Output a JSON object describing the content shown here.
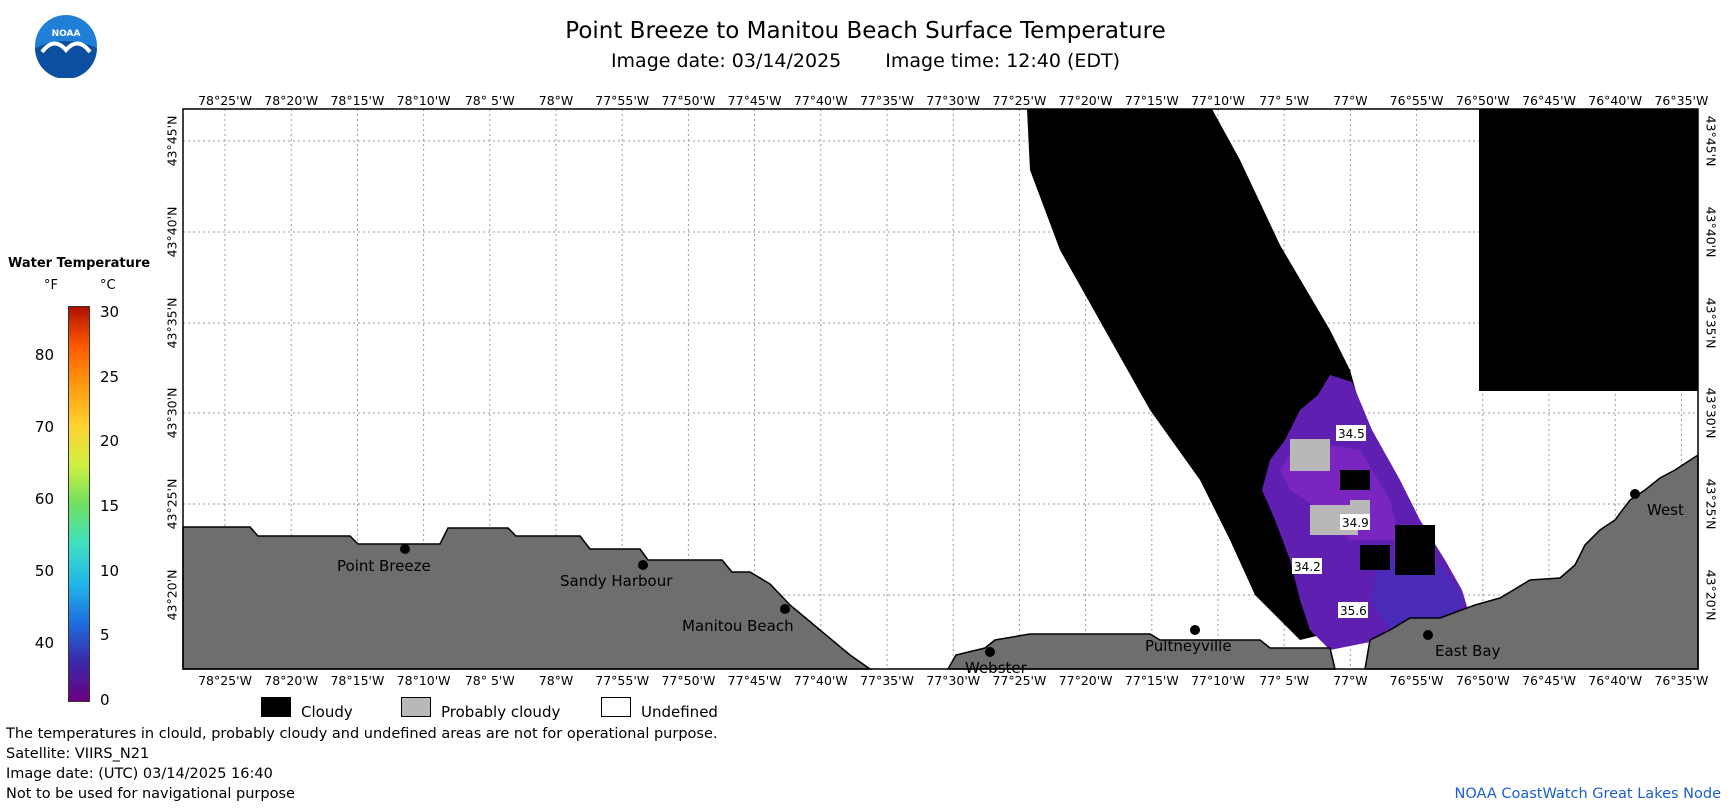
{
  "header": {
    "title": "Point Breeze to Manitou Beach Surface Temperature",
    "image_date": "Image date: 03/14/2025",
    "image_time": "Image time: 12:40 (EDT)"
  },
  "logo": {
    "text": "NOAA",
    "icon": "noaa-logo"
  },
  "axes": {
    "longitude_labels": [
      "78°25'W",
      "78°20'W",
      "78°15'W",
      "78°10'W",
      "78° 5'W",
      "78°W",
      "77°55'W",
      "77°50'W",
      "77°45'W",
      "77°40'W",
      "77°35'W",
      "77°30'W",
      "77°25'W",
      "77°20'W",
      "77°15'W",
      "77°10'W",
      "77° 5'W",
      "77°W",
      "76°55'W",
      "76°50'W",
      "76°45'W",
      "76°40'W",
      "76°35'W"
    ],
    "latitude_labels": [
      "43°45'N",
      "43°40'N",
      "43°35'N",
      "43°30'N",
      "43°25'N",
      "43°20'N"
    ]
  },
  "colorbar": {
    "title": "Water Temperature",
    "unit_f": "°F",
    "unit_c": "°C",
    "fahrenheit_ticks": [
      "80",
      "70",
      "60",
      "50",
      "40"
    ],
    "celsius_ticks": [
      "30",
      "25",
      "20",
      "15",
      "10",
      "5",
      "0"
    ],
    "range_c": [
      0,
      30
    ],
    "colors": [
      "#6a0080",
      "#3a2aa8",
      "#1f6fe0",
      "#20b8e8",
      "#40e0c0",
      "#70e060",
      "#d0f040",
      "#ffd030",
      "#ff9a10",
      "#ff5a00",
      "#b01000"
    ]
  },
  "places": [
    {
      "name": "Point Breeze"
    },
    {
      "name": "Sandy Harbour"
    },
    {
      "name": "Manitou Beach"
    },
    {
      "name": "Webster"
    },
    {
      "name": "Pultneyville"
    },
    {
      "name": "East Bay"
    },
    {
      "name": "West"
    }
  ],
  "temperature_labels": [
    "34.5",
    "34.9",
    "34.2",
    "35.6"
  ],
  "map_colors": {
    "land": "#6e6e6e",
    "cloud": "#000000",
    "probably_cloudy": "#b8b8b8",
    "water_cold": "#5f1fb0",
    "water_cold2": "#7a25c0",
    "water_cold3": "#4a2ab8"
  },
  "legend": {
    "cloudy": "Cloudy",
    "probably_cloudy": "Probably cloudy",
    "undefined": "Undefined"
  },
  "footer": {
    "note": "The temperatures in clould, probably cloudy and undefined areas are not for operational purpose.",
    "satellite": "Satellite: VIIRS_N21",
    "utc_date": "Image date: (UTC) 03/14/2025  16:40",
    "warning": "Not to be used for navigational purpose",
    "credit": "NOAA CoastWatch Great Lakes Node"
  }
}
